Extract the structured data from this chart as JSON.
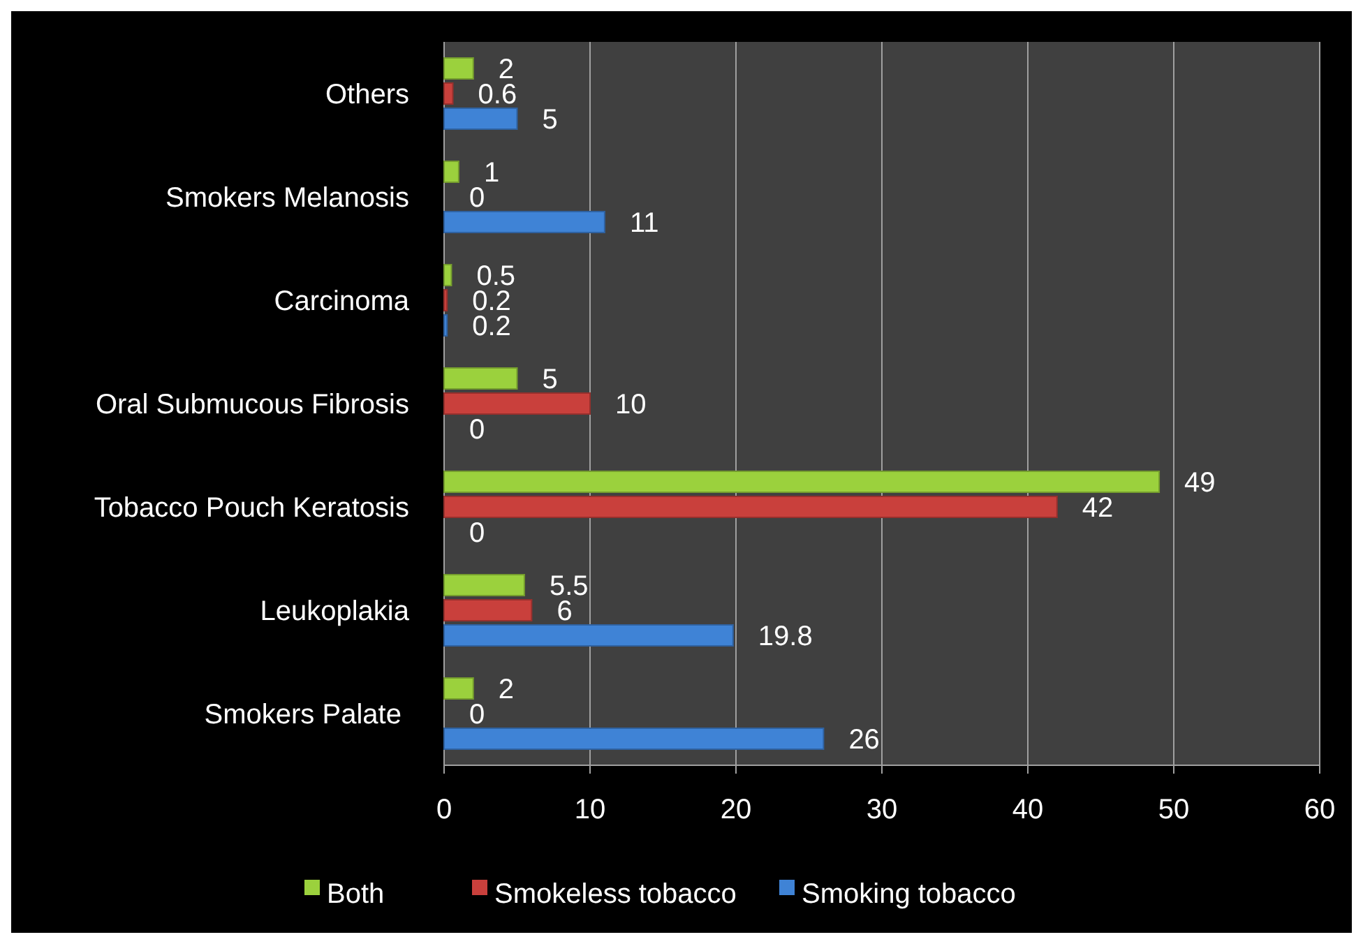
{
  "chart_data": {
    "type": "bar",
    "orientation": "horizontal",
    "categories": [
      "Others",
      "Smokers Melanosis",
      "Carcinoma",
      "Oral Submucous Fibrosis",
      "Tobacco Pouch Keratosis",
      "Leukoplakia",
      "Smokers Palate "
    ],
    "series": [
      {
        "name": "Both",
        "color": "#9bd13d",
        "values": [
          2,
          1,
          0.5,
          5,
          49,
          5.5,
          2
        ]
      },
      {
        "name": "Smokeless tobacco",
        "color": "#c9403c",
        "values": [
          0.6,
          0,
          0.2,
          10,
          42,
          6,
          0
        ]
      },
      {
        "name": "Smoking tobacco",
        "color": "#3f83d6",
        "values": [
          5,
          11,
          0.2,
          0,
          0,
          19.8,
          26
        ]
      }
    ],
    "xlim": [
      0,
      60
    ],
    "xticks": [
      0,
      10,
      20,
      30,
      40,
      50,
      60
    ],
    "grid": "x",
    "legend": "bottom",
    "data_labels": true
  }
}
